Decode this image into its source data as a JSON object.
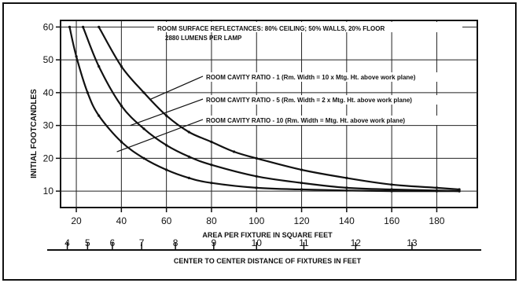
{
  "chart_data": {
    "type": "line",
    "title": "",
    "ylabel": "INITIAL FOOTCANDLES",
    "xlabel": "AREA PER FIXTURE IN SQUARE FEET",
    "x2label": "CENTER TO CENTER DISTANCE OF FIXTURES IN FEET",
    "xlim": [
      13,
      198
    ],
    "ylim": [
      5,
      62
    ],
    "yticks": [
      10,
      20,
      30,
      40,
      50,
      60
    ],
    "xticks": [
      20,
      40,
      60,
      80,
      100,
      120,
      140,
      160,
      180
    ],
    "x2ticks": [
      {
        "label": "4",
        "area": 16
      },
      {
        "label": "5",
        "area": 25
      },
      {
        "label": "6",
        "area": 36
      },
      {
        "label": "7",
        "area": 49
      },
      {
        "label": "8",
        "area": 64
      },
      {
        "label": "9",
        "area": 81
      },
      {
        "label": "10",
        "area": 100
      },
      {
        "label": "11",
        "area": 121
      },
      {
        "label": "12",
        "area": 144
      },
      {
        "label": "13",
        "area": 169
      }
    ],
    "grid": true,
    "annotations": {
      "line1": "ROOM SURFACE REFLECTANCES: 80% CEILING; 50% WALLS, 20% FLOOR",
      "line2": "2880 LUMENS PER LAMP"
    },
    "series": [
      {
        "name": "ROOM CAVITY RATIO - 1 (Rm. Width = 10 x Mtg. Ht. above work plane)",
        "x": [
          30,
          40,
          50,
          60,
          70,
          80,
          90,
          100,
          120,
          140,
          160,
          180,
          190
        ],
        "y": [
          60,
          48,
          40,
          33,
          28,
          25,
          22,
          20,
          16.5,
          14,
          12,
          11,
          10.5
        ]
      },
      {
        "name": "ROOM CAVITY RATIO - 5 (Rm. Width = 2 x Mtg. Ht. above work plane)",
        "x": [
          23,
          30,
          40,
          50,
          60,
          70,
          80,
          100,
          120,
          140,
          160,
          180,
          190
        ],
        "y": [
          60,
          48,
          36,
          29,
          24,
          20.5,
          18,
          14.5,
          12.5,
          11,
          10.5,
          10.2,
          10
        ]
      },
      {
        "name": "ROOM CAVITY RATIO - 10 (Rm. Width = Mtg. Ht. above work plane)",
        "x": [
          17,
          20,
          25,
          30,
          40,
          50,
          60,
          70,
          80,
          100,
          120,
          140,
          160,
          180,
          190
        ],
        "y": [
          60,
          51,
          40,
          33,
          25,
          20,
          16.5,
          14,
          12.5,
          11,
          10.5,
          10.2,
          10,
          10,
          10
        ]
      }
    ],
    "series_labels": [
      {
        "text": "ROOM CAVITY RATIO - 1 (Rm. Width = 10 x Mtg. Ht. above work plane)",
        "leader_x": 53,
        "leader_y": 38
      },
      {
        "text": "ROOM CAVITY RATIO - 5 (Rm. Width = 2 x Mtg. Ht. above work plane)",
        "leader_x": 44,
        "leader_y": 30
      },
      {
        "text": "ROOM CAVITY RATIO - 10 (Rm. Width = Mtg. Ht. above work plane)",
        "leader_x": 38,
        "leader_y": 22
      }
    ]
  }
}
